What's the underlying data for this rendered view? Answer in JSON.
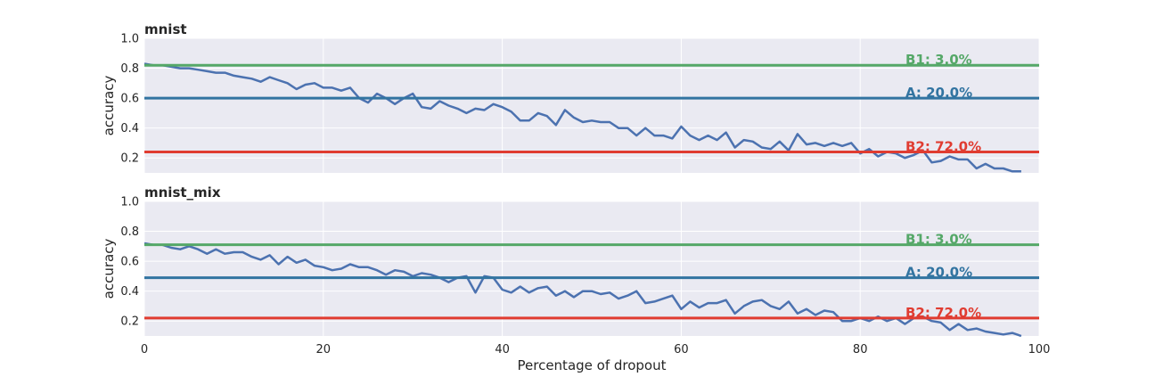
{
  "chart_data": [
    {
      "type": "line",
      "title": "mnist",
      "xlabel": "",
      "ylabel": "accuracy",
      "xlim": [
        0,
        100
      ],
      "ylim": [
        0.1,
        1.0
      ],
      "x_ticks": [],
      "y_ticks": [
        "0.2",
        "0.4",
        "0.6",
        "0.8",
        "1.0"
      ],
      "grid": true,
      "series": [
        {
          "color": "#4c72b0",
          "x": [
            0,
            1,
            2,
            3,
            4,
            5,
            6,
            7,
            8,
            9,
            10,
            11,
            12,
            13,
            14,
            15,
            16,
            17,
            18,
            19,
            20,
            21,
            22,
            23,
            24,
            25,
            26,
            27,
            28,
            29,
            30,
            31,
            32,
            33,
            34,
            35,
            36,
            37,
            38,
            39,
            40,
            41,
            42,
            43,
            44,
            45,
            46,
            47,
            48,
            49,
            50,
            51,
            52,
            53,
            54,
            55,
            56,
            57,
            58,
            59,
            60,
            61,
            62,
            63,
            64,
            65,
            66,
            67,
            68,
            69,
            70,
            71,
            72,
            73,
            74,
            75,
            76,
            77,
            78,
            79,
            80,
            81,
            82,
            83,
            84,
            85,
            86,
            87,
            88,
            89,
            90,
            91,
            92,
            93,
            94,
            95,
            96,
            97,
            98
          ],
          "y": [
            0.83,
            0.82,
            0.82,
            0.81,
            0.8,
            0.8,
            0.79,
            0.78,
            0.77,
            0.77,
            0.75,
            0.74,
            0.73,
            0.71,
            0.74,
            0.72,
            0.7,
            0.66,
            0.69,
            0.7,
            0.67,
            0.67,
            0.65,
            0.67,
            0.6,
            0.57,
            0.63,
            0.6,
            0.56,
            0.6,
            0.63,
            0.54,
            0.53,
            0.58,
            0.55,
            0.53,
            0.5,
            0.53,
            0.52,
            0.56,
            0.54,
            0.51,
            0.45,
            0.45,
            0.5,
            0.48,
            0.42,
            0.52,
            0.47,
            0.44,
            0.45,
            0.44,
            0.44,
            0.4,
            0.4,
            0.35,
            0.4,
            0.35,
            0.35,
            0.33,
            0.41,
            0.35,
            0.32,
            0.35,
            0.32,
            0.37,
            0.27,
            0.32,
            0.31,
            0.27,
            0.26,
            0.31,
            0.25,
            0.36,
            0.29,
            0.3,
            0.28,
            0.3,
            0.28,
            0.3,
            0.23,
            0.26,
            0.21,
            0.24,
            0.23,
            0.2,
            0.22,
            0.25,
            0.17,
            0.18,
            0.21,
            0.19,
            0.19,
            0.13,
            0.16,
            0.13,
            0.13,
            0.11,
            0.11
          ]
        }
      ],
      "hlines": [
        {
          "label": "B1: 3.0%",
          "y": 0.82,
          "color": "#55a868"
        },
        {
          "label": "A: 20.0%",
          "y": 0.6,
          "color": "#3274a1"
        },
        {
          "label": "B2: 72.0%",
          "y": 0.24,
          "color": "#e03c31"
        }
      ]
    },
    {
      "type": "line",
      "title": "mnist_mix",
      "xlabel": "Percentage of dropout",
      "ylabel": "accuracy",
      "xlim": [
        0,
        100
      ],
      "ylim": [
        0.1,
        1.0
      ],
      "x_ticks": [
        "0",
        "20",
        "40",
        "60",
        "80",
        "100"
      ],
      "y_ticks": [
        "0.2",
        "0.4",
        "0.6",
        "0.8",
        "1.0"
      ],
      "grid": true,
      "series": [
        {
          "color": "#4c72b0",
          "x": [
            0,
            1,
            2,
            3,
            4,
            5,
            6,
            7,
            8,
            9,
            10,
            11,
            12,
            13,
            14,
            15,
            16,
            17,
            18,
            19,
            20,
            21,
            22,
            23,
            24,
            25,
            26,
            27,
            28,
            29,
            30,
            31,
            32,
            33,
            34,
            35,
            36,
            37,
            38,
            39,
            40,
            41,
            42,
            43,
            44,
            45,
            46,
            47,
            48,
            49,
            50,
            51,
            52,
            53,
            54,
            55,
            56,
            57,
            58,
            59,
            60,
            61,
            62,
            63,
            64,
            65,
            66,
            67,
            68,
            69,
            70,
            71,
            72,
            73,
            74,
            75,
            76,
            77,
            78,
            79,
            80,
            81,
            82,
            83,
            84,
            85,
            86,
            87,
            88,
            89,
            90,
            91,
            92,
            93,
            94,
            95,
            96,
            97,
            98
          ],
          "y": [
            0.72,
            0.71,
            0.71,
            0.69,
            0.68,
            0.7,
            0.68,
            0.65,
            0.68,
            0.65,
            0.66,
            0.66,
            0.63,
            0.61,
            0.64,
            0.58,
            0.63,
            0.59,
            0.61,
            0.57,
            0.56,
            0.54,
            0.55,
            0.58,
            0.56,
            0.56,
            0.54,
            0.51,
            0.54,
            0.53,
            0.5,
            0.52,
            0.51,
            0.49,
            0.46,
            0.49,
            0.5,
            0.39,
            0.5,
            0.49,
            0.41,
            0.39,
            0.43,
            0.39,
            0.42,
            0.43,
            0.37,
            0.4,
            0.36,
            0.4,
            0.4,
            0.38,
            0.39,
            0.35,
            0.37,
            0.4,
            0.32,
            0.33,
            0.35,
            0.37,
            0.28,
            0.33,
            0.29,
            0.32,
            0.32,
            0.34,
            0.25,
            0.3,
            0.33,
            0.34,
            0.3,
            0.28,
            0.33,
            0.25,
            0.28,
            0.24,
            0.27,
            0.26,
            0.2,
            0.2,
            0.22,
            0.2,
            0.23,
            0.2,
            0.22,
            0.18,
            0.22,
            0.23,
            0.2,
            0.19,
            0.14,
            0.18,
            0.14,
            0.15,
            0.13,
            0.12,
            0.11,
            0.12,
            0.1
          ]
        }
      ],
      "hlines": [
        {
          "label": "B1: 3.0%",
          "y": 0.71,
          "color": "#55a868"
        },
        {
          "label": "A: 20.0%",
          "y": 0.49,
          "color": "#3274a1"
        },
        {
          "label": "B2: 72.0%",
          "y": 0.22,
          "color": "#e03c31"
        }
      ]
    }
  ]
}
